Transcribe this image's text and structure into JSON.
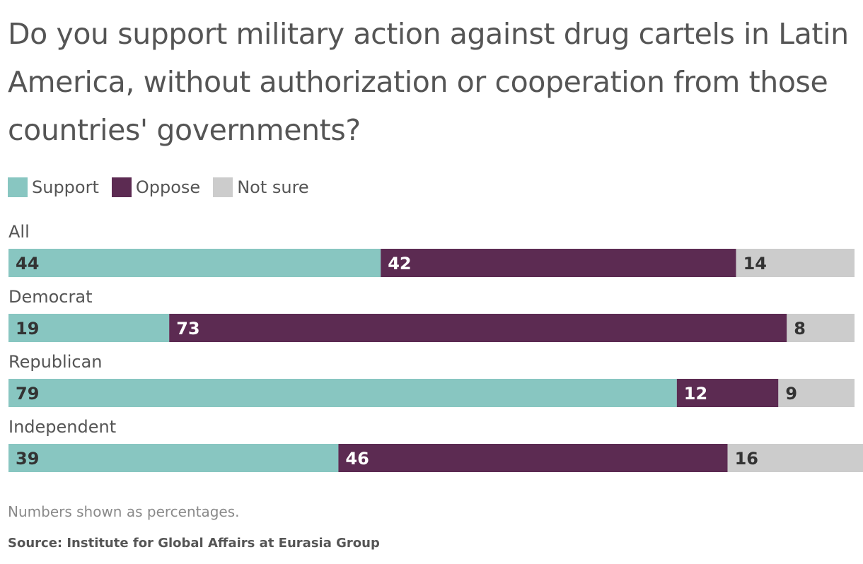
{
  "chart_data": {
    "type": "bar",
    "orientation": "horizontal",
    "stacked": true,
    "title": "Do you support military action against drug cartels in Latin America, without authorization or cooperation from those countries' governments?",
    "categories": [
      "All",
      "Democrat",
      "Republican",
      "Independent"
    ],
    "series": [
      {
        "name": "Support",
        "values": [
          44,
          19,
          79,
          39
        ],
        "color": "#88c6c1",
        "label_color": "#333333"
      },
      {
        "name": "Oppose",
        "values": [
          42,
          73,
          12,
          46
        ],
        "color": "#5c2b52",
        "label_color": "#ffffff"
      },
      {
        "name": "Not sure",
        "values": [
          14,
          8,
          9,
          16
        ],
        "color": "#cccccc",
        "label_color": "#333333"
      }
    ],
    "xlim": [
      0,
      100
    ],
    "grid": false,
    "legend_position": "top-left",
    "note": "Numbers shown as percentages.",
    "source": "Source: Institute for Global Affairs at Eurasia Group"
  }
}
